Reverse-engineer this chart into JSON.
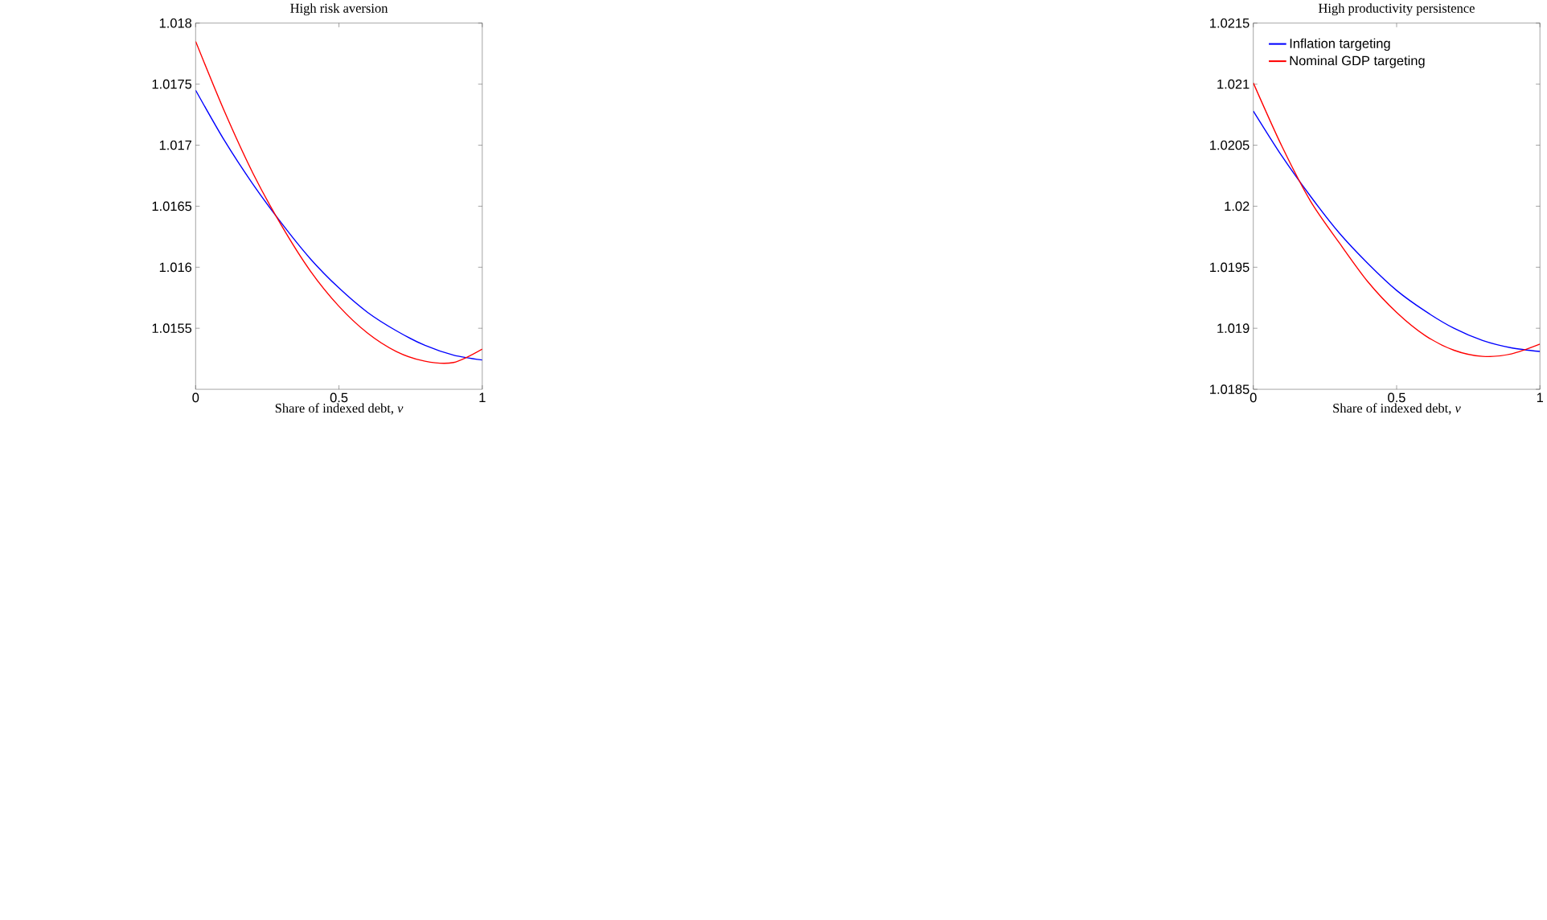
{
  "chart_data": [
    {
      "type": "line",
      "title": "High risk aversion",
      "xlabel": "Share of indexed debt, *v*",
      "legend": false,
      "grid": false,
      "x": [
        0,
        0.1,
        0.2,
        0.3,
        0.4,
        0.5,
        0.6,
        0.7,
        0.8,
        0.9,
        1
      ],
      "series": [
        {
          "color": "#0000ff",
          "values": [
            1.01745,
            1.01704,
            1.01668,
            1.01636,
            1.01607,
            1.01583,
            1.01563,
            1.01548,
            1.01536,
            1.01528,
            1.01524
          ]
        },
        {
          "color": "#ff0000",
          "values": [
            1.01785,
            1.01728,
            1.01677,
            1.01634,
            1.01597,
            1.01568,
            1.01546,
            1.01531,
            1.01523,
            1.01522,
            1.01533
          ]
        }
      ],
      "xlim": [
        0,
        1
      ],
      "xticks": [
        0,
        0.5,
        1
      ],
      "ylim": [
        1.015,
        1.018
      ],
      "yticks": [
        1.0155,
        1.016,
        1.0165,
        1.017,
        1.0175,
        1.018
      ]
    },
    {
      "type": "line",
      "title": "High productivity persistence",
      "xlabel": "Share of indexed debt, *v*",
      "legend": "top left",
      "grid": false,
      "x": [
        0,
        0.1,
        0.2,
        0.3,
        0.4,
        0.5,
        0.6,
        0.7,
        0.8,
        0.9,
        1
      ],
      "series": [
        {
          "name": "Inflation targeting",
          "color": "#0000ff",
          "values": [
            1.02078,
            1.02041,
            1.02008,
            1.01978,
            1.01953,
            1.01931,
            1.01914,
            1.019,
            1.0189,
            1.01884,
            1.01881
          ]
        },
        {
          "name": "Nominal GDP targeting",
          "color": "#ff0000",
          "values": [
            1.02101,
            1.02049,
            1.02004,
            1.0197,
            1.01938,
            1.01913,
            1.01894,
            1.01882,
            1.01877,
            1.01879,
            1.01887
          ]
        }
      ],
      "xlim": [
        0,
        1
      ],
      "xticks": [
        0,
        0.5,
        1
      ],
      "ylim": [
        1.0185,
        1.0215
      ],
      "yticks": [
        1.0185,
        1.019,
        1.0195,
        1.02,
        1.0205,
        1.021,
        1.0215
      ]
    }
  ]
}
